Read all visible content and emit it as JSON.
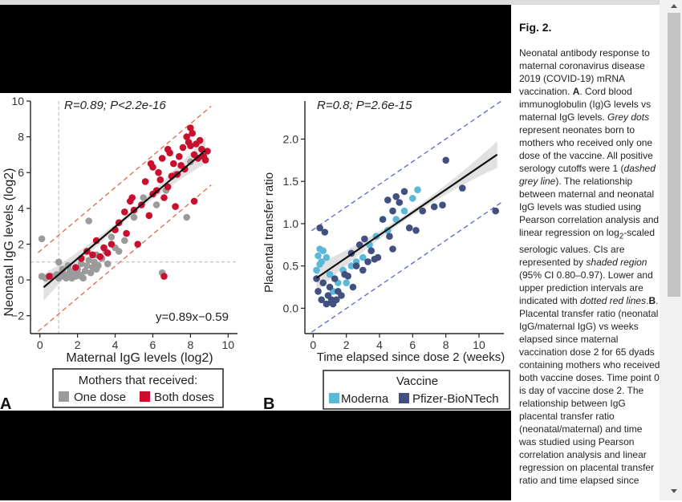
{
  "caption": {
    "title": "Fig. 2.",
    "body_parts": [
      {
        "t": "Neonatal antibody response to maternal coronavirus disease 2019 (COVID-19) mRNA vaccination. "
      },
      {
        "t": "A",
        "b": true
      },
      {
        "t": ". Cord blood immunoglobulin (Ig)G levels vs maternal IgG levels. "
      },
      {
        "t": "Grey dots",
        "i": true
      },
      {
        "t": " represent neonates born to mothers who received only one dose of the vaccine. All positive serology cutoffs were 1 ("
      },
      {
        "t": "dashed grey line",
        "i": true
      },
      {
        "t": "). The relationship between maternal and neonatal IgG levels was studied using Pearson correlation analysis and linear regression on log"
      },
      {
        "t": "2",
        "sub": true
      },
      {
        "t": "-scaled serologic values. CIs are represented by "
      },
      {
        "t": "shaded region",
        "i": true
      },
      {
        "t": " (95% CI 0.80–0.97). Lower and upper prediction intervals are indicated with "
      },
      {
        "t": "dotted red lines",
        "i": true
      },
      {
        "t": "."
      },
      {
        "t": "B",
        "b": true
      },
      {
        "t": ". Placental transfer ratio (neonatal IgG/maternal IgG) vs weeks elapsed since maternal vaccination dose 2 for 65 dyads containing mothers who received both vaccine doses. Time point 0 is day of vaccine dose 2. The relationship between IgG placental transfer ratio (neonatal/maternal) and time was studied using Pearson correlation analysis and linear regression on placental transfer ratio and time elapsed since"
      }
    ]
  },
  "panel_a": {
    "label": "A",
    "stat": "R=0.89; P<2.2e-16",
    "equation": "y=0.89x−0.59",
    "legend_title": "Mothers that received:",
    "legend_items": [
      {
        "label": "One dose",
        "color": "#9b9b9b"
      },
      {
        "label": "Both doses",
        "color": "#c8102e"
      }
    ]
  },
  "panel_b": {
    "label": "B",
    "stat": "R=0.8; P=2.6e-15",
    "legend_title": "Vaccine",
    "legend_items": [
      {
        "label": "Moderna",
        "color": "#5bb8d6"
      },
      {
        "label": "Pfizer-BioNTech",
        "color": "#41507e"
      }
    ]
  },
  "chart_data": [
    {
      "type": "scatter",
      "xlabel": "Maternal IgG levels (log2)",
      "ylabel": "Neonatal IgG levels (log2)",
      "xlim": [
        -0.5,
        10.5
      ],
      "ylim": [
        -3,
        10
      ],
      "xticks": [
        0,
        2,
        4,
        6,
        8,
        10
      ],
      "yticks": [
        -2,
        0,
        2,
        4,
        6,
        8,
        10
      ],
      "cutoff": 1,
      "fit": {
        "slope": 0.89,
        "intercept": -0.59,
        "x_range": [
          0.2,
          8.8
        ]
      },
      "prediction_interval": {
        "offset": 2.2
      },
      "series": [
        {
          "name": "One dose",
          "color": "#9b9b9b",
          "points": [
            [
              0.1,
              2.3
            ],
            [
              0.1,
              0.2
            ],
            [
              0.3,
              0.1
            ],
            [
              0.6,
              0.2
            ],
            [
              0.9,
              0.3
            ],
            [
              1.0,
              0.1
            ],
            [
              1.1,
              0.3
            ],
            [
              1.2,
              0.6
            ],
            [
              1.3,
              0.2
            ],
            [
              1.4,
              0.1
            ],
            [
              1.5,
              0.3
            ],
            [
              1.5,
              0.8
            ],
            [
              1.6,
              0.5
            ],
            [
              1.7,
              0.1
            ],
            [
              1.8,
              0.4
            ],
            [
              1.9,
              0.2
            ],
            [
              2.0,
              0.6
            ],
            [
              2.1,
              0.3
            ],
            [
              2.2,
              0.9
            ],
            [
              2.3,
              0.1
            ],
            [
              2.4,
              0.5
            ],
            [
              2.5,
              0.8
            ],
            [
              2.6,
              1.1
            ],
            [
              2.7,
              0.4
            ],
            [
              2.8,
              0.7
            ],
            [
              2.9,
              1.0
            ],
            [
              3.0,
              0.6
            ],
            [
              3.0,
              1.4
            ],
            [
              2.6,
              3.3
            ],
            [
              3.3,
              1.2
            ],
            [
              3.5,
              1.6
            ],
            [
              3.6,
              0.9
            ],
            [
              3.8,
              2.4
            ],
            [
              4.0,
              1.8
            ],
            [
              4.2,
              1.6
            ],
            [
              4.5,
              2.2
            ],
            [
              5.0,
              3.5
            ],
            [
              5.5,
              4.6
            ],
            [
              6.2,
              4.2
            ],
            [
              6.5,
              0.4
            ],
            [
              7.8,
              3.5
            ],
            [
              8.0,
              6.6
            ],
            [
              7.2,
              5.9
            ],
            [
              6.7,
              5.0
            ],
            [
              1.0,
              1.0
            ],
            [
              0.5,
              0.2
            ],
            [
              2.2,
              0.2
            ],
            [
              1.2,
              0.4
            ],
            [
              3.1,
              0.8
            ]
          ]
        },
        {
          "name": "Both doses",
          "color": "#c8102e",
          "points": [
            [
              0.5,
              0.2
            ],
            [
              1.9,
              0.7
            ],
            [
              2.2,
              1.2
            ],
            [
              2.5,
              1.6
            ],
            [
              2.8,
              1.4
            ],
            [
              3.0,
              2.2
            ],
            [
              3.2,
              1.3
            ],
            [
              3.4,
              1.8
            ],
            [
              3.6,
              1.5
            ],
            [
              3.8,
              2.0
            ],
            [
              4.0,
              2.8
            ],
            [
              4.2,
              3.2
            ],
            [
              4.5,
              3.8
            ],
            [
              4.6,
              2.6
            ],
            [
              4.8,
              4.4
            ],
            [
              5.0,
              3.9
            ],
            [
              5.2,
              2.0
            ],
            [
              5.4,
              4.2
            ],
            [
              5.6,
              5.5
            ],
            [
              5.8,
              3.6
            ],
            [
              6.0,
              6.3
            ],
            [
              6.0,
              4.8
            ],
            [
              6.2,
              5.0
            ],
            [
              6.3,
              6.0
            ],
            [
              6.4,
              5.6
            ],
            [
              6.5,
              6.8
            ],
            [
              6.6,
              4.6
            ],
            [
              6.8,
              5.2
            ],
            [
              6.9,
              7.1
            ],
            [
              7.0,
              5.8
            ],
            [
              7.1,
              6.5
            ],
            [
              7.2,
              4.1
            ],
            [
              7.3,
              5.9
            ],
            [
              7.4,
              6.9
            ],
            [
              7.5,
              6.4
            ],
            [
              7.6,
              7.4
            ],
            [
              7.7,
              6.2
            ],
            [
              7.8,
              8.0
            ],
            [
              7.9,
              7.7
            ],
            [
              8.0,
              7.5
            ],
            [
              8.1,
              8.2
            ],
            [
              8.2,
              7.0
            ],
            [
              8.3,
              7.6
            ],
            [
              8.4,
              6.8
            ],
            [
              8.5,
              7.8
            ],
            [
              8.6,
              7.3
            ],
            [
              8.7,
              6.9
            ],
            [
              8.8,
              6.7
            ],
            [
              8.2,
              4.4
            ],
            [
              8.0,
              8.5
            ],
            [
              6.6,
              0.2
            ],
            [
              8.9,
              7.2
            ],
            [
              5.9,
              6.5
            ],
            [
              4.9,
              4.6
            ],
            [
              6.8,
              7.3
            ]
          ]
        }
      ]
    },
    {
      "type": "scatter",
      "xlabel": "Time elapsed since dose 2 (weeks)",
      "ylabel": "Placental transfer ratio",
      "xlim": [
        -0.5,
        11.5
      ],
      "ylim": [
        -0.3,
        2.45
      ],
      "xticks": [
        0,
        2,
        4,
        6,
        8,
        10
      ],
      "yticks": [
        0.0,
        0.5,
        1.0,
        1.5,
        2.0
      ],
      "fit": {
        "slope": 0.134,
        "intercept": 0.33,
        "x_range": [
          0.2,
          11.1
        ]
      },
      "prediction_interval": {
        "offset": 0.6
      },
      "series": [
        {
          "name": "Moderna",
          "color": "#5bb8d6",
          "points": [
            [
              0.2,
              0.45
            ],
            [
              0.3,
              0.62
            ],
            [
              0.4,
              0.7
            ],
            [
              0.5,
              0.55
            ],
            [
              0.6,
              0.68
            ],
            [
              0.8,
              0.6
            ],
            [
              1.0,
              0.4
            ],
            [
              1.2,
              0.2
            ],
            [
              1.5,
              0.3
            ],
            [
              1.8,
              0.45
            ],
            [
              2.0,
              0.3
            ],
            [
              2.3,
              0.5
            ],
            [
              2.6,
              0.55
            ],
            [
              3.0,
              0.6
            ],
            [
              3.4,
              0.75
            ],
            [
              3.8,
              0.85
            ],
            [
              4.5,
              0.92
            ],
            [
              5.0,
              1.05
            ],
            [
              5.5,
              1.15
            ],
            [
              6.0,
              1.3
            ],
            [
              6.3,
              1.4
            ],
            [
              0.4,
              0.52
            ]
          ]
        },
        {
          "name": "Pfizer-BioNTech",
          "color": "#41507e",
          "points": [
            [
              0.2,
              0.35
            ],
            [
              0.3,
              0.2
            ],
            [
              0.4,
              0.95
            ],
            [
              0.5,
              0.1
            ],
            [
              0.6,
              0.3
            ],
            [
              0.7,
              0.9
            ],
            [
              0.8,
              0.05
            ],
            [
              0.9,
              0.15
            ],
            [
              1.0,
              0.25
            ],
            [
              1.1,
              0.1
            ],
            [
              1.2,
              0.05
            ],
            [
              1.3,
              0.35
            ],
            [
              1.4,
              0.1
            ],
            [
              1.5,
              0.2
            ],
            [
              1.7,
              0.15
            ],
            [
              1.9,
              0.4
            ],
            [
              2.1,
              0.38
            ],
            [
              2.3,
              0.65
            ],
            [
              2.4,
              0.25
            ],
            [
              2.6,
              0.5
            ],
            [
              2.8,
              0.75
            ],
            [
              3.0,
              0.45
            ],
            [
              3.1,
              0.82
            ],
            [
              3.3,
              0.55
            ],
            [
              3.5,
              0.68
            ],
            [
              3.7,
              0.58
            ],
            [
              3.9,
              0.6
            ],
            [
              4.2,
              1.05
            ],
            [
              4.5,
              1.28
            ],
            [
              4.6,
              0.85
            ],
            [
              4.8,
              1.15
            ],
            [
              5.0,
              1.32
            ],
            [
              5.2,
              1.25
            ],
            [
              5.5,
              1.38
            ],
            [
              5.8,
              0.95
            ],
            [
              6.2,
              0.92
            ],
            [
              6.6,
              1.15
            ],
            [
              7.3,
              1.2
            ],
            [
              7.8,
              1.22
            ],
            [
              8.0,
              1.75
            ],
            [
              9.0,
              1.42
            ],
            [
              11.0,
              1.15
            ],
            [
              4.8,
              0.7
            ]
          ]
        }
      ]
    }
  ]
}
